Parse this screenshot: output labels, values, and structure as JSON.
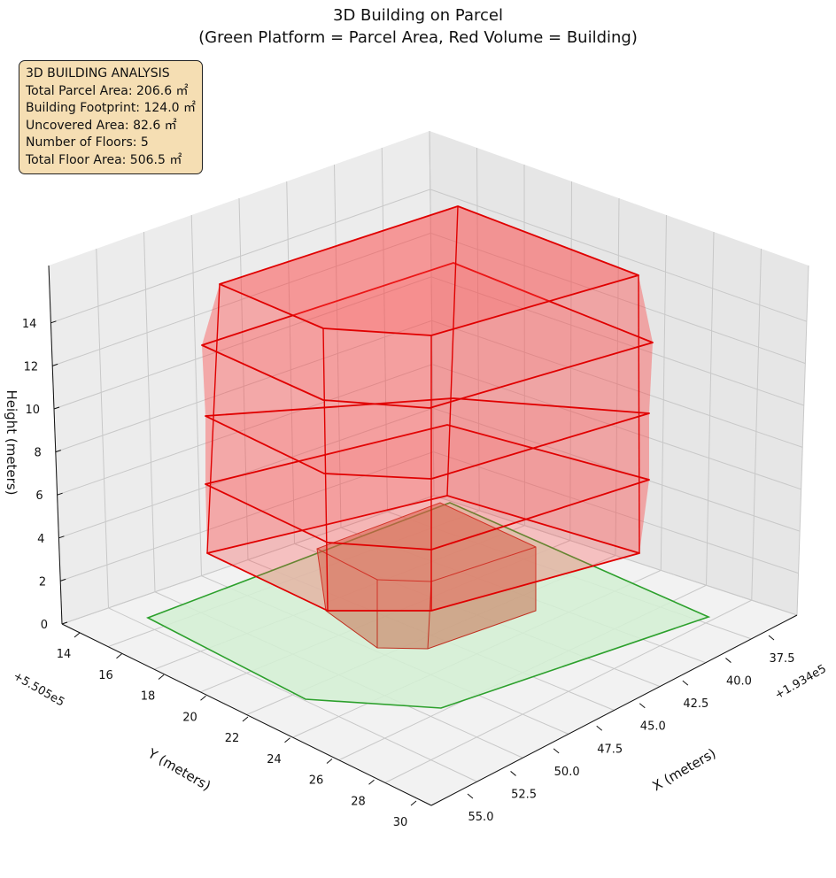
{
  "chart_data": {
    "type": "area",
    "title": "3D Building on Parcel",
    "subtitle": "(Green Platform = Parcel Area, Red Volume = Building)",
    "xlabel": "X (meters)",
    "ylabel": "Y (meters)",
    "zlabel": "Height (meters)",
    "x_offset": "+1.934e5",
    "y_offset": "+5.505e5",
    "x_ticks": [
      "37.5",
      "40.0",
      "42.5",
      "45.0",
      "47.5",
      "50.0",
      "52.5",
      "55.0"
    ],
    "y_ticks": [
      "14",
      "16",
      "18",
      "20",
      "22",
      "24",
      "26",
      "28",
      "30"
    ],
    "z_ticks": [
      "0",
      "2",
      "4",
      "6",
      "8",
      "10",
      "12",
      "14"
    ],
    "zlim": [
      0,
      15
    ],
    "grid": true,
    "series": [
      {
        "name": "Parcel Area",
        "color": "#2ca02c",
        "fill": "#d4f0d4"
      },
      {
        "name": "Building",
        "color": "#e00000",
        "fill": "#ff4040",
        "floors": 5
      }
    ]
  },
  "info_box": {
    "heading": "3D BUILDING ANALYSIS",
    "lines": [
      "Total Parcel Area: 206.6 ㎡",
      "Building Footprint: 124.0 ㎡",
      "Uncovered Area: 82.6 ㎡",
      "Number of Floors: 5",
      "Total Floor Area: 506.5 ㎡"
    ]
  }
}
